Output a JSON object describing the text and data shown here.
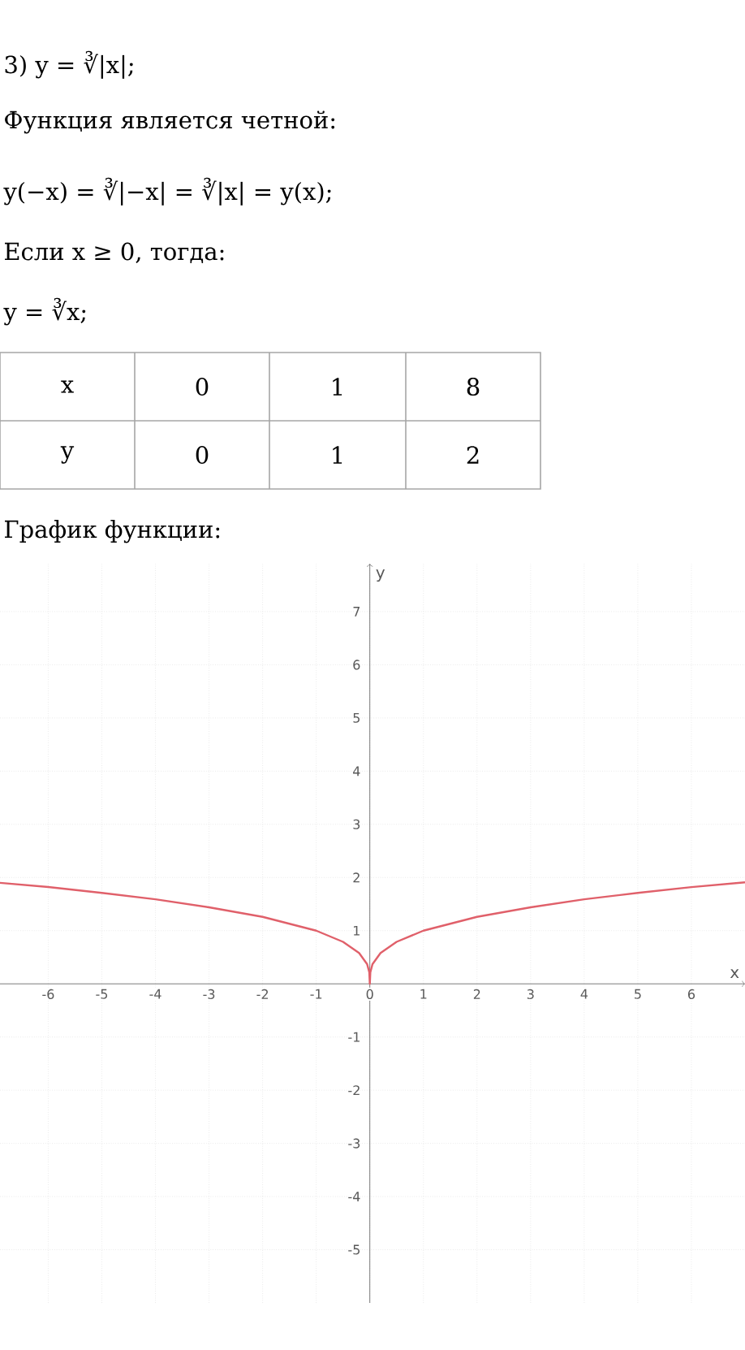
{
  "chart_data": {
    "type": "line",
    "annotations": [
      "3) y = ∛|x|;",
      "Функция является четной:",
      "y(−x) = ∛|−x| = ∛|x| = y(x);",
      "Если x ≥ 0, тогда:",
      "y = ∛x;",
      "x",
      "0",
      "1",
      "8",
      "y",
      "0",
      "1",
      "2",
      "График функции:"
    ],
    "xlabel": "x",
    "ylabel": "y",
    "x": [
      -6.9,
      -6,
      -5,
      -4,
      -3,
      -2,
      -1,
      -0.5,
      -0.2,
      -0.05,
      -0.01,
      0,
      0.01,
      0.05,
      0.2,
      0.5,
      1,
      2,
      3,
      4,
      5,
      6,
      7
    ],
    "values": [
      1.9,
      1.82,
      1.71,
      1.59,
      1.44,
      1.26,
      1,
      0.79,
      0.58,
      0.37,
      0.22,
      0,
      0.22,
      0.37,
      0.58,
      0.79,
      1,
      1.26,
      1.44,
      1.59,
      1.71,
      1.82,
      1.91
    ],
    "color": "#e0606a",
    "xlim": [
      -6.9,
      7
    ],
    "ylim": [
      -6,
      7.9
    ],
    "xticks": [
      -6,
      -5,
      -4,
      -3,
      -2,
      -1,
      0,
      1,
      2,
      3,
      4,
      5,
      6
    ],
    "yticks": [
      -5,
      -4,
      -3,
      -2,
      -1,
      1,
      2,
      3,
      4,
      5,
      6,
      7
    ],
    "grid": true
  }
}
